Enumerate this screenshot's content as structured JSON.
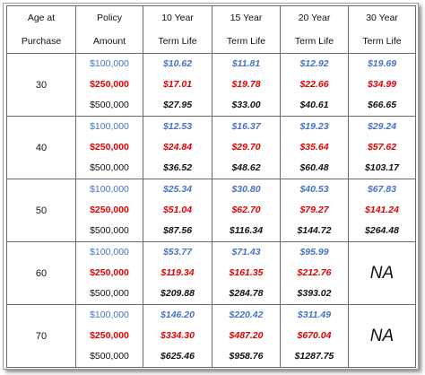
{
  "headers": [
    [
      "Age at",
      "Purchase"
    ],
    [
      "Policy",
      "Amount"
    ],
    [
      "10 Year",
      "Term Life"
    ],
    [
      "15 Year",
      "Term Life"
    ],
    [
      "20 Year",
      "Term Life"
    ],
    [
      "30 Year",
      "Term Life"
    ]
  ],
  "amounts": [
    "$100,000",
    "$250,000",
    "$500,000"
  ],
  "rows": [
    {
      "age": "30",
      "terms": [
        [
          "$10.62",
          "$17.01",
          "$27.95"
        ],
        [
          "$11.81",
          "$19.78",
          "$33.00"
        ],
        [
          "$12.92",
          "$22.66",
          "$40.61"
        ],
        [
          "$19.69",
          "$34.99",
          "$66.65"
        ]
      ]
    },
    {
      "age": "40",
      "terms": [
        [
          "$12.53",
          "$24.84",
          "$36.52"
        ],
        [
          "$16.37",
          "$29.70",
          "$48.62"
        ],
        [
          "$19.23",
          "$35.64",
          "$60.48"
        ],
        [
          "$29.24",
          "$57.62",
          "$103.17"
        ]
      ]
    },
    {
      "age": "50",
      "terms": [
        [
          "$25.34",
          "$51.04",
          "$87.56"
        ],
        [
          "$30.80",
          "$62.70",
          "$116.34"
        ],
        [
          "$40.53",
          "$79.27",
          "$144.72"
        ],
        [
          "$67.83",
          "$141.24",
          "$264.48"
        ]
      ]
    },
    {
      "age": "60",
      "terms": [
        [
          "$53.77",
          "$119.34",
          "$209.88"
        ],
        [
          "$71.43",
          "$161.35",
          "$284.78"
        ],
        [
          "$95.99",
          "$212.76",
          "$393.02"
        ]
      ],
      "na": "NA"
    },
    {
      "age": "70",
      "terms": [
        [
          "$146.20",
          "$334.30",
          "$625.46"
        ],
        [
          "$220.42",
          "$487.20",
          "$958.76"
        ],
        [
          "$311.49",
          "$670.04",
          "$1287.75"
        ]
      ],
      "na": "NA"
    }
  ],
  "colors": {
    "amount_100k": "#4472c4",
    "amount_250k": "#e00000",
    "amount_500k": "#111111"
  }
}
